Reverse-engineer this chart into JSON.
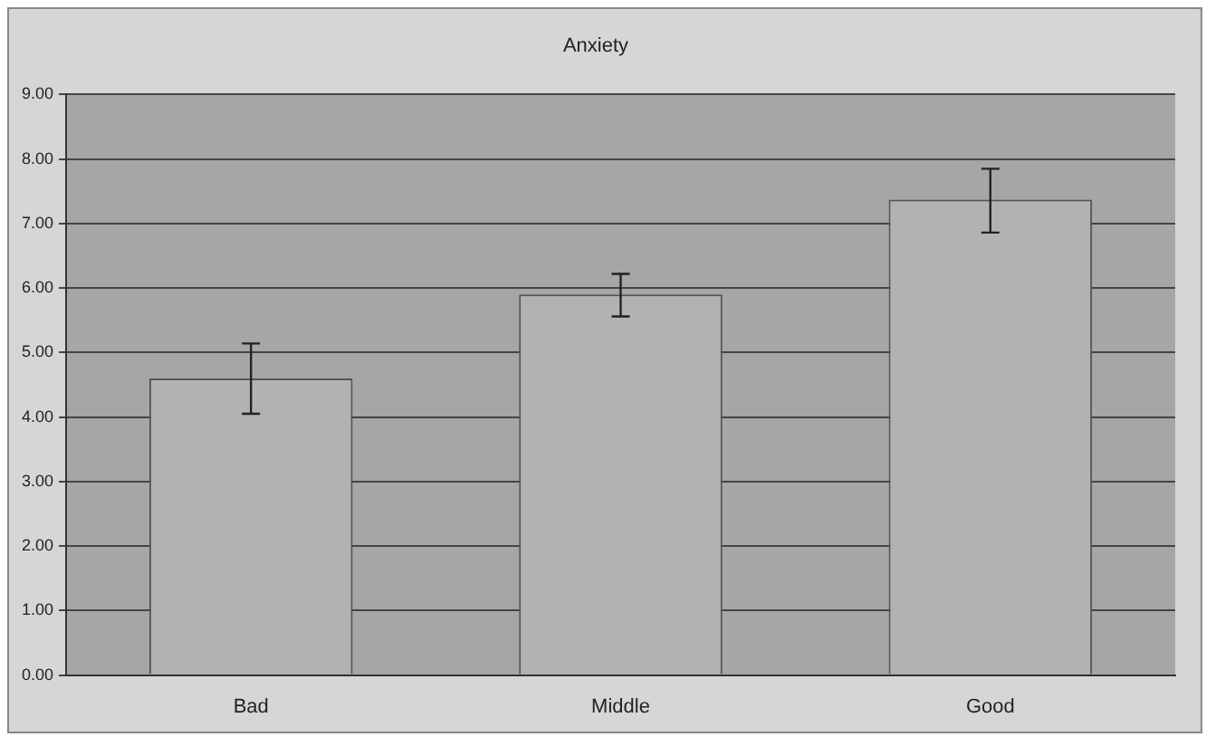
{
  "chart_data": {
    "type": "bar",
    "title": "Anxiety",
    "categories": [
      "Bad",
      "Middle",
      "Good"
    ],
    "values": [
      4.6,
      5.9,
      7.37
    ],
    "errors": [
      [
        4.05,
        5.14
      ],
      [
        5.56,
        6.22
      ],
      [
        6.86,
        7.85
      ]
    ],
    "color": "#b2b2b2",
    "ylim": [
      0,
      9
    ],
    "yticks": [
      {
        "value": 0,
        "label": "0.00"
      },
      {
        "value": 1,
        "label": "1.00"
      },
      {
        "value": 2,
        "label": "2.00"
      },
      {
        "value": 3,
        "label": "3.00"
      },
      {
        "value": 4,
        "label": "4.00"
      },
      {
        "value": 5,
        "label": "5.00"
      },
      {
        "value": 6,
        "label": "6.00"
      },
      {
        "value": 7,
        "label": "7.00"
      },
      {
        "value": 8,
        "label": "8.00"
      },
      {
        "value": 9,
        "label": "9.00"
      }
    ],
    "grid": "y",
    "legend": false
  }
}
